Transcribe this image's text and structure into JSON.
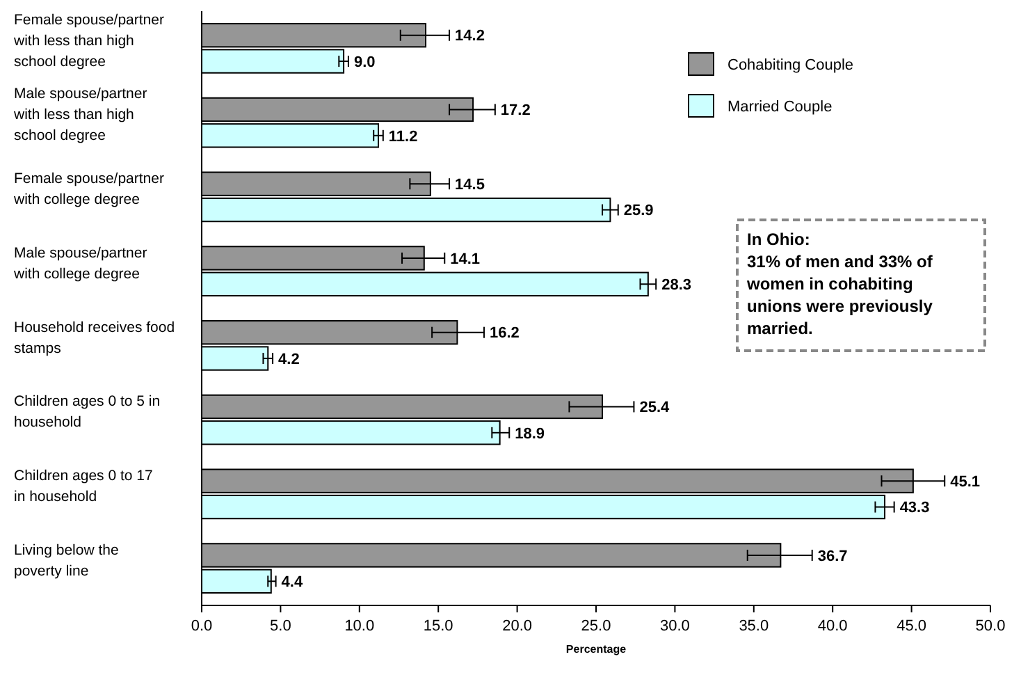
{
  "chart_data": {
    "type": "bar",
    "orientation": "horizontal",
    "xlabel": "Percentage",
    "categories": [
      "Female spouse/partner with less than high school degree",
      "Male spouse/partner with less than high school degree",
      "Female spouse/partner with college degree",
      "Male spouse/partner with college degree",
      "Household receives food stamps",
      "Children ages 0 to 5 in household",
      "Children ages 0 to 17 in household",
      "Living below the poverty line"
    ],
    "series": [
      {
        "name": "Cohabiting Couple",
        "color": "#969696",
        "values": [
          14.2,
          17.2,
          14.5,
          14.1,
          16.2,
          25.4,
          45.1,
          36.7
        ],
        "value_labels": [
          "14.2",
          "17.2",
          "14.5",
          "14.1",
          "16.2",
          "25.4",
          "45.1",
          "36.7"
        ],
        "errors": [
          [
            12.6,
            15.7
          ],
          [
            15.7,
            18.6
          ],
          [
            13.2,
            15.7
          ],
          [
            12.7,
            15.4
          ],
          [
            14.6,
            17.9
          ],
          [
            23.3,
            27.4
          ],
          [
            43.1,
            47.1
          ],
          [
            34.6,
            38.7
          ]
        ]
      },
      {
        "name": "Married Couple",
        "color": "#ccffff",
        "values": [
          9.0,
          11.2,
          25.9,
          28.3,
          4.2,
          18.9,
          43.3,
          4.4
        ],
        "value_labels": [
          "9.0",
          "11.2",
          "25.9",
          "28.3",
          "4.2",
          "18.9",
          "43.3",
          "4.4"
        ],
        "errors": [
          [
            8.7,
            9.3
          ],
          [
            10.9,
            11.5
          ],
          [
            25.4,
            26.4
          ],
          [
            27.8,
            28.8
          ],
          [
            3.9,
            4.5
          ],
          [
            18.4,
            19.5
          ],
          [
            42.7,
            43.9
          ],
          [
            4.2,
            4.7
          ]
        ]
      }
    ],
    "xlim": [
      0,
      50
    ],
    "xticks": [
      {
        "value": 0,
        "label": "0.0"
      },
      {
        "value": 5,
        "label": "5.0"
      },
      {
        "value": 10,
        "label": "10.0"
      },
      {
        "value": 15,
        "label": "15.0"
      },
      {
        "value": 20,
        "label": "20.0"
      },
      {
        "value": 25,
        "label": "25.0"
      },
      {
        "value": 30,
        "label": "30.0"
      },
      {
        "value": 35,
        "label": "35.0"
      },
      {
        "value": 40,
        "label": "40.0"
      },
      {
        "value": 45,
        "label": "45.0"
      },
      {
        "value": 50,
        "label": "50.0"
      }
    ],
    "legend": "top right",
    "annotations": [
      "In Ohio:\n31% of men and 33% of women in cohabiting unions were previously married."
    ]
  }
}
